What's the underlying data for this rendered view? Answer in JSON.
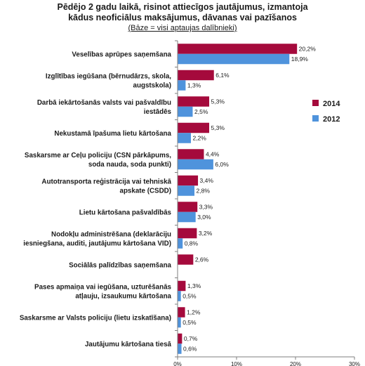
{
  "title_line1": "Pēdējo 2 gadu laikā, risinot attiecīgos jautājumus, izmantoja",
  "title_line2": "kādus neoficiālus maksājumus, dāvanas vai pazīšanos",
  "subtitle": "(Bāze = visi aptaujas dalībnieki)",
  "chart_data": {
    "type": "bar",
    "orientation": "horizontal",
    "categories": [
      [
        "Veselības aprūpes saņemšana"
      ],
      [
        "Izglītības iegūšana (bērnudārzs, skola,",
        "augstskola)"
      ],
      [
        "Darbā iekārtošanās valsts vai pašvaldību",
        "iestādēs"
      ],
      [
        "Nekustamā īpašuma lietu kārtošana"
      ],
      [
        "Saskarsme ar Ceļu policiju (CSN pārkāpums,",
        "soda nauda, soda punkti)"
      ],
      [
        "Autotransporta reģistrācija vai tehniskā",
        "apskate (CSDD)"
      ],
      [
        "Lietu kārtošana pašvaldībās"
      ],
      [
        "Nodokļu administrēšana (deklarāciju",
        "iesniegšana, auditi, jautājumu kārtošana VID)"
      ],
      [
        "Sociālās palīdzības saņemšana"
      ],
      [
        "Pases apmaiņa vai iegūšana, uzturēšanās",
        "atļauju, izsaukumu kārtošana"
      ],
      [
        "Saskarsme ar Valsts policiju (lietu izskatīšana)"
      ],
      [
        "Jautājumu kārtošana tiesā"
      ]
    ],
    "series": [
      {
        "name": "2014",
        "color": "#a50a3c",
        "values": [
          20.2,
          6.1,
          5.3,
          5.3,
          4.4,
          3.4,
          3.3,
          3.2,
          2.6,
          1.3,
          1.2,
          0.7
        ],
        "labels": [
          "20,2%",
          "6,1%",
          "5,3%",
          "5,3%",
          "4,4%",
          "3,4%",
          "3,3%",
          "3,2%",
          "2,6%",
          "1,3%",
          "1,2%",
          "0,7%"
        ]
      },
      {
        "name": "2012",
        "color": "#4f93dc",
        "values": [
          18.9,
          1.3,
          2.5,
          2.2,
          6.0,
          2.8,
          3.0,
          0.8,
          null,
          0.5,
          0.5,
          0.6
        ],
        "labels": [
          "18,9%",
          "1,3%",
          "2,5%",
          "2,2%",
          "6,0%",
          "2,8%",
          "3,0%",
          "0,8%",
          null,
          "0,5%",
          "0,5%",
          "0,6%"
        ]
      }
    ],
    "xlim": [
      0,
      30
    ],
    "xticks": [
      0,
      10,
      20,
      30
    ],
    "xtick_labels": [
      "0%",
      "10%",
      "20%",
      "30%"
    ],
    "legend_position": "right",
    "grid": false
  }
}
